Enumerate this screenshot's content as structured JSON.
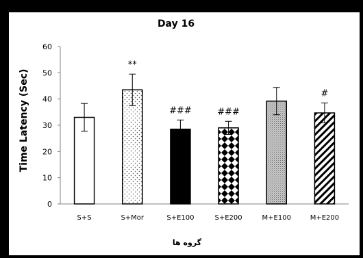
{
  "chart_data": {
    "type": "bar",
    "title": "Day 16",
    "xlabel": "گروه ها",
    "ylabel": "Time Latency (Sec)",
    "ylim": [
      0,
      60
    ],
    "yticks": [
      "0",
      "10",
      "20",
      "30",
      "40",
      "50",
      "60"
    ],
    "grid": false,
    "legend": "none",
    "categories": [
      "S+S",
      "S+Mor",
      "S+E100",
      "S+E200",
      "M+E100",
      "M+E200"
    ],
    "values": [
      33,
      43.5,
      28.5,
      29,
      39.2,
      34.7
    ],
    "errors": [
      5.3,
      6,
      3.5,
      2.5,
      5.2,
      3.8
    ],
    "annotations": [
      "",
      "**",
      "###",
      "###",
      "",
      "#"
    ],
    "fills": [
      "white",
      "dots",
      "black",
      "checker",
      "gray-dotted",
      "diagonal-hatch"
    ],
    "colors": {
      "background": "#ffffff",
      "frame": "#000000",
      "axis": "#808080",
      "text": "#000000"
    }
  }
}
